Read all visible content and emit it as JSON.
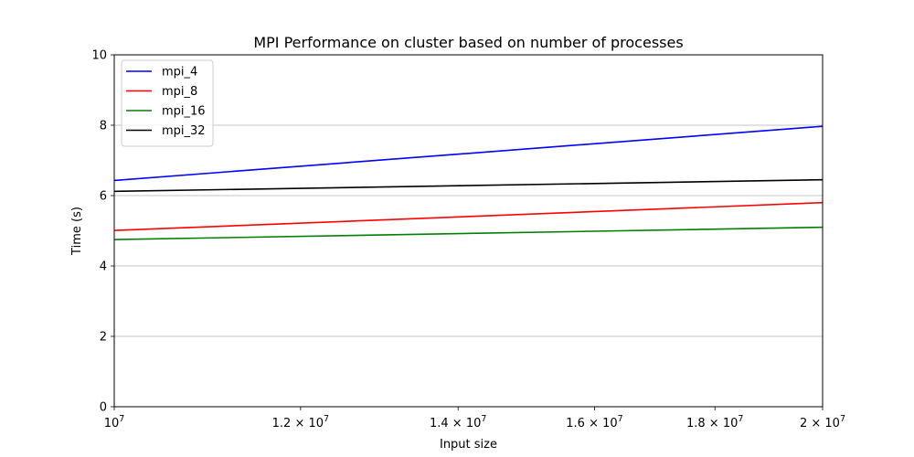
{
  "chart_data": {
    "type": "line",
    "title": "MPI Performance on cluster based on number of processes",
    "xlabel": "Input size",
    "ylabel": "Time (s)",
    "xscale": "log",
    "xlim": [
      10000000,
      20000000
    ],
    "ylim": [
      0,
      10
    ],
    "x_ticks": [
      {
        "value": 10000000,
        "mantissa": "",
        "base": "10",
        "exp": "7"
      },
      {
        "value": 12000000,
        "mantissa": "1.2 × ",
        "base": "10",
        "exp": "7"
      },
      {
        "value": 14000000,
        "mantissa": "1.4 × ",
        "base": "10",
        "exp": "7"
      },
      {
        "value": 16000000,
        "mantissa": "1.6 × ",
        "base": "10",
        "exp": "7"
      },
      {
        "value": 18000000,
        "mantissa": "1.8 × ",
        "base": "10",
        "exp": "7"
      },
      {
        "value": 20000000,
        "mantissa": "2 × ",
        "base": "10",
        "exp": "7"
      }
    ],
    "y_ticks": [
      0,
      2,
      4,
      6,
      8,
      10
    ],
    "grid": "y",
    "legend_position": "top-left",
    "series": [
      {
        "name": "mpi_4",
        "color": "#0000ff",
        "x": [
          10000000,
          20000000
        ],
        "y": [
          6.43,
          7.97
        ]
      },
      {
        "name": "mpi_8",
        "color": "#ff0000",
        "x": [
          10000000,
          20000000
        ],
        "y": [
          5.01,
          5.8
        ]
      },
      {
        "name": "mpi_16",
        "color": "#008000",
        "x": [
          10000000,
          20000000
        ],
        "y": [
          4.75,
          5.1
        ]
      },
      {
        "name": "mpi_32",
        "color": "#000000",
        "x": [
          10000000,
          20000000
        ],
        "y": [
          6.12,
          6.45
        ]
      }
    ]
  }
}
